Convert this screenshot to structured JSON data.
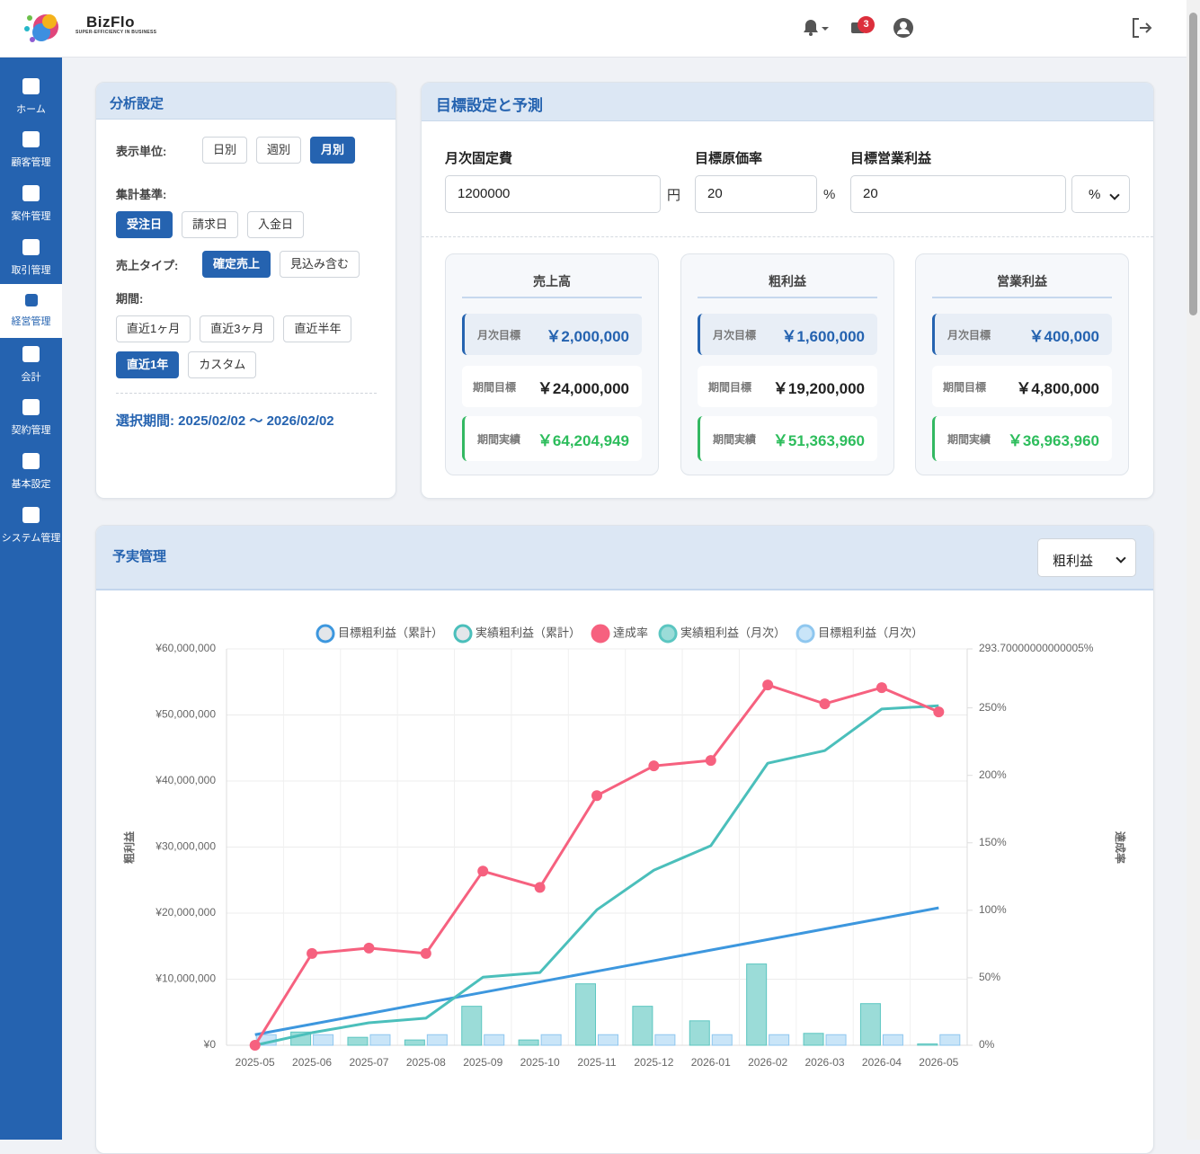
{
  "header": {
    "brand": "BizFlo",
    "tagline": "SUPER-EFFICIENCY IN BUSINESS",
    "badge": "3"
  },
  "sidebar": {
    "items": [
      {
        "label": "ホーム",
        "active": false
      },
      {
        "label": "顧客管理",
        "active": false
      },
      {
        "label": "案件管理",
        "active": false
      },
      {
        "label": "取引管理",
        "active": false
      },
      {
        "label": "経営管理",
        "active": true
      },
      {
        "label": "会計",
        "active": false
      },
      {
        "label": "契約管理",
        "active": false
      },
      {
        "label": "基本設定",
        "active": false
      },
      {
        "label": "システム管理",
        "active": false
      }
    ]
  },
  "analysis": {
    "title": "分析設定",
    "groups": [
      {
        "label": "表示単位:",
        "options": [
          {
            "label": "日別",
            "active": false
          },
          {
            "label": "週別",
            "active": false
          },
          {
            "label": "月別",
            "active": true
          }
        ]
      },
      {
        "label": "集計基準:",
        "options": [
          {
            "label": "受注日",
            "active": true
          },
          {
            "label": "請求日",
            "active": false
          },
          {
            "label": "入金日",
            "active": false
          }
        ]
      },
      {
        "label": "売上タイプ:",
        "options": [
          {
            "label": "確定売上",
            "active": true
          },
          {
            "label": "見込み含む",
            "active": false
          }
        ]
      },
      {
        "label": "期間:",
        "options": [
          {
            "label": "直近1ヶ月",
            "active": false
          },
          {
            "label": "直近3ヶ月",
            "active": false
          },
          {
            "label": "直近半年",
            "active": false
          },
          {
            "label": "直近1年",
            "active": true
          },
          {
            "label": "カスタム",
            "active": false
          }
        ]
      }
    ],
    "selected_period": "選択期間: 2025/02/02 〜 2026/02/02"
  },
  "targets": {
    "title": "目標設定と予測",
    "fields": [
      {
        "label": "月次固定費",
        "value": "1200000",
        "unit": "円"
      },
      {
        "label": "目標原価率",
        "value": "20",
        "unit": "%"
      },
      {
        "label": "目標営業利益",
        "value": "20",
        "select": "%"
      }
    ],
    "cards": [
      {
        "title": "売上高",
        "rows": [
          {
            "label": "月次目標",
            "value": "￥2,000,000"
          },
          {
            "label": "期間目標",
            "value": "￥24,000,000"
          },
          {
            "label": "期間実績",
            "value": "￥64,204,949"
          }
        ]
      },
      {
        "title": "粗利益",
        "rows": [
          {
            "label": "月次目標",
            "value": "￥1,600,000"
          },
          {
            "label": "期間目標",
            "value": "￥19,200,000"
          },
          {
            "label": "期間実績",
            "value": "￥51,363,960"
          }
        ]
      },
      {
        "title": "営業利益",
        "rows": [
          {
            "label": "月次目標",
            "value": "￥400,000"
          },
          {
            "label": "期間目標",
            "value": "￥4,800,000"
          },
          {
            "label": "期間実績",
            "value": "￥36,963,960"
          }
        ]
      }
    ]
  },
  "budget": {
    "title": "予実管理",
    "metric": "粗利益"
  },
  "chart_data": {
    "type": "combo",
    "ylabel": "粗利益",
    "y2label": "達成率",
    "categories": [
      "2025-05",
      "2025-06",
      "2025-07",
      "2025-08",
      "2025-09",
      "2025-10",
      "2025-11",
      "2025-12",
      "2026-01",
      "2026-02",
      "2026-03",
      "2026-04",
      "2026-05"
    ],
    "ylim": [
      0,
      60000000
    ],
    "yticks": [
      {
        "value": 0,
        "label": "¥0"
      },
      {
        "value": 10000000,
        "label": "¥10,000,000"
      },
      {
        "value": 20000000,
        "label": "¥20,000,000"
      },
      {
        "value": 30000000,
        "label": "¥30,000,000"
      },
      {
        "value": 40000000,
        "label": "¥40,000,000"
      },
      {
        "value": 50000000,
        "label": "¥50,000,000"
      },
      {
        "value": 60000000,
        "label": "¥60,000,000"
      }
    ],
    "y2lim": [
      0,
      293.70000000000005
    ],
    "y2ticks": [
      {
        "value": 0,
        "label": "0%"
      },
      {
        "value": 50,
        "label": "50%"
      },
      {
        "value": 100,
        "label": "100%"
      },
      {
        "value": 150,
        "label": "150%"
      },
      {
        "value": 200,
        "label": "200%"
      },
      {
        "value": 250,
        "label": "250%"
      },
      {
        "value": 293.70000000000005,
        "label": "293.70000000000005%"
      }
    ],
    "grid": true,
    "series": [
      {
        "name": "目標粗利益（累計）",
        "type": "line",
        "color": "#3d97de",
        "values": [
          1600000,
          3200000,
          4800000,
          6400000,
          8000000,
          9600000,
          11200000,
          12800000,
          14400000,
          16000000,
          17600000,
          19200000,
          20800000
        ]
      },
      {
        "name": "実績粗利益（累計）",
        "type": "line",
        "color": "#4bbfbb",
        "values": [
          0,
          1900000,
          3400000,
          4100000,
          10300000,
          11000000,
          20500000,
          26500000,
          30200000,
          42700000,
          44600000,
          50900000,
          51400000
        ]
      },
      {
        "name": "達成率",
        "type": "line",
        "axis": "y2",
        "color": "#f6617f",
        "markers": true,
        "values": [
          0,
          68,
          72,
          68,
          129,
          117,
          185,
          207,
          211,
          267,
          253,
          265,
          247
        ]
      },
      {
        "name": "実績粗利益（月次）",
        "type": "bar",
        "color": "#5cc6c1",
        "fill": "#9bdcd8",
        "values": [
          0,
          2000000,
          1200000,
          800000,
          5900000,
          800000,
          9300000,
          5900000,
          3700000,
          12300000,
          1800000,
          6300000,
          200000
        ]
      },
      {
        "name": "目標粗利益（月次）",
        "type": "bar",
        "color": "#8fc7ef",
        "fill": "#c9e5f8",
        "values": [
          1600000,
          1600000,
          1600000,
          1600000,
          1600000,
          1600000,
          1600000,
          1600000,
          1600000,
          1600000,
          1600000,
          1600000,
          1600000
        ]
      }
    ]
  }
}
